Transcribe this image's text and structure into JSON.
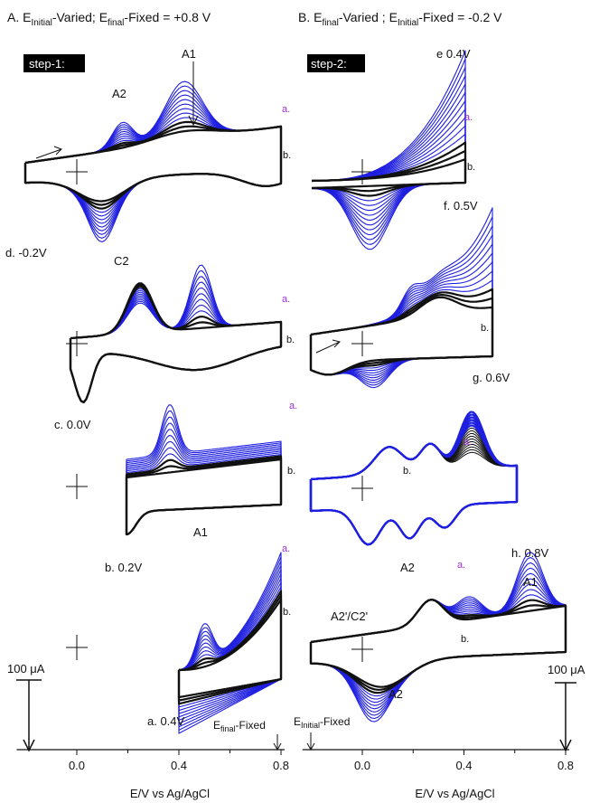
{
  "figure": {
    "panel_a_title": {
      "prefix": "A. E",
      "sub1": "Initial",
      "mid": "-Varied;  E",
      "sub2": "final",
      "suffix": "-Fixed = +0.8 V"
    },
    "panel_b_title": {
      "prefix": "B. E",
      "sub1": "final",
      "mid": "-Varied ;  E",
      "sub2": "Initial",
      "suffix": "-Fixed = -0.2 V"
    },
    "step1": "step-1:",
    "step2": "step-2:",
    "scale_bar_left": "100 μA",
    "scale_bar_right": "100 μA",
    "efinal_fixed": {
      "base": "E",
      "sub": "final",
      "rest": "-Fixed"
    },
    "einitial_fixed": {
      "base": "E",
      "sub": "Initial",
      "rest": "-Fixed"
    }
  },
  "colors": {
    "initial_scans": "#1f1fe0",
    "final_scans": "#111111",
    "label_a": "#9b30d9"
  },
  "chart_data": [
    {
      "type": "line",
      "panel": "A",
      "xlabel": "E/V vs Ag/AgCl",
      "x_ticks": [
        "0.0",
        "0.4",
        "0.8"
      ],
      "xlim": [
        -0.2,
        0.8
      ],
      "scale_bar": "100 μA",
      "traces": [
        {
          "label": "d. -0.2V",
          "E_initial": -0.2,
          "E_final": 0.8
        },
        {
          "label": "c. 0.0V",
          "E_initial": 0.0,
          "E_final": 0.8
        },
        {
          "label": "b. 0.2V",
          "E_initial": 0.2,
          "E_final": 0.8
        },
        {
          "label": "a. 0.4V",
          "E_initial": 0.4,
          "E_final": 0.8
        }
      ],
      "series_labels": [
        "a.",
        "b."
      ],
      "peaks": [
        "A1",
        "A2",
        "C2",
        "A1"
      ]
    },
    {
      "type": "line",
      "panel": "B",
      "xlabel": "E/V vs Ag/AgCl",
      "x_ticks": [
        "0.0",
        "0.4",
        "0.8"
      ],
      "xlim": [
        -0.2,
        0.8
      ],
      "scale_bar": "100 μA",
      "traces": [
        {
          "label": "e 0.4V",
          "E_initial": -0.2,
          "E_final": 0.4
        },
        {
          "label": "f. 0.5V",
          "E_initial": -0.2,
          "E_final": 0.5
        },
        {
          "label": "g. 0.6V",
          "E_initial": -0.2,
          "E_final": 0.6
        },
        {
          "label": "h. 0.8V",
          "E_initial": -0.2,
          "E_final": 0.8
        }
      ],
      "series_labels": [
        "a.",
        "b."
      ],
      "peaks": [
        "A2",
        "A1",
        "A2'/C2'",
        "A2"
      ]
    }
  ]
}
